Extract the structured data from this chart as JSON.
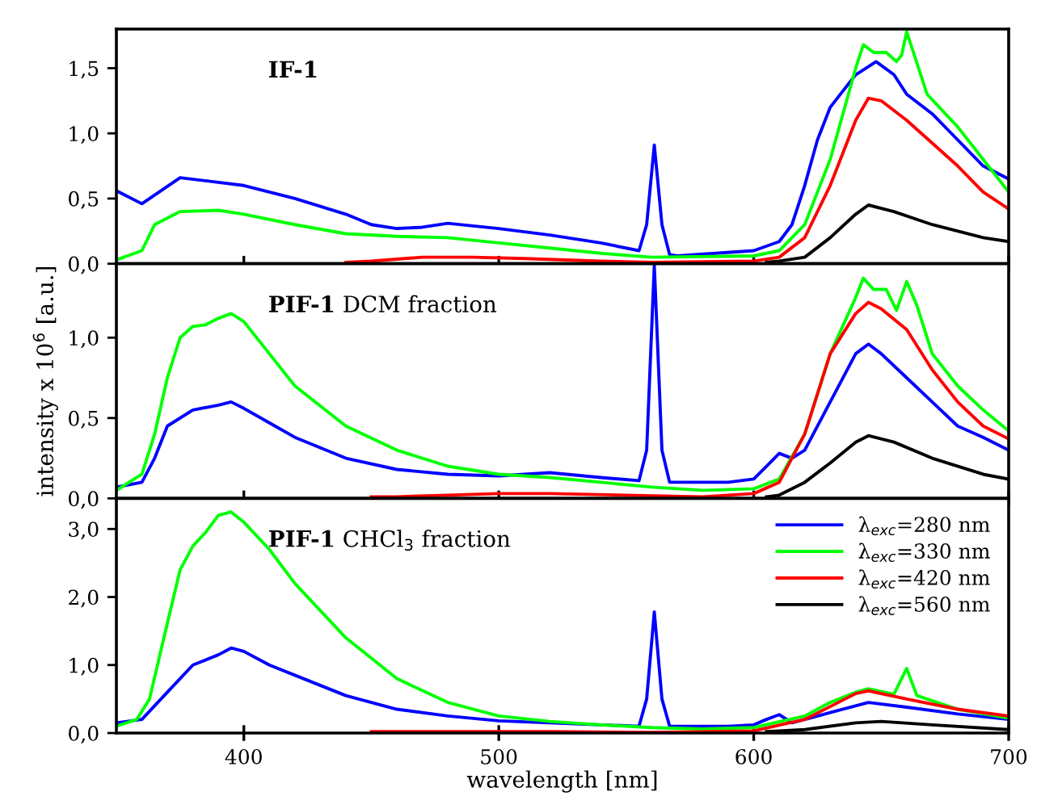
{
  "chart_data": [
    {
      "type": "line",
      "title": "IF-1",
      "xlim": [
        350,
        700
      ],
      "xticks": [
        400,
        500,
        600,
        700
      ],
      "ylim": [
        0,
        1.8
      ],
      "yticks": [
        {
          "value": 0,
          "label": "0,0"
        },
        {
          "value": 0.5,
          "label": "0,5"
        },
        {
          "value": 1.0,
          "label": "1,0"
        },
        {
          "value": 1.5,
          "label": "1,5"
        }
      ],
      "tick_labels": "y",
      "grid": false,
      "legend": false,
      "series": [
        {
          "color": "#0000ff",
          "x": [
            350,
            360,
            375,
            400,
            420,
            440,
            450,
            460,
            470,
            480,
            500,
            520,
            540,
            555,
            558,
            561,
            564,
            567,
            570,
            600,
            610,
            615,
            620,
            625,
            630,
            640,
            648,
            655,
            660,
            670,
            680,
            690,
            700
          ],
          "values": [
            0.56,
            0.46,
            0.66,
            0.6,
            0.5,
            0.38,
            0.3,
            0.27,
            0.28,
            0.31,
            0.27,
            0.22,
            0.16,
            0.1,
            0.3,
            0.91,
            0.3,
            0.07,
            0.06,
            0.1,
            0.17,
            0.3,
            0.6,
            0.95,
            1.2,
            1.45,
            1.55,
            1.45,
            1.3,
            1.15,
            0.95,
            0.75,
            0.65
          ]
        },
        {
          "color": "#00ff00",
          "x": [
            350,
            360,
            365,
            375,
            390,
            400,
            420,
            440,
            460,
            480,
            500,
            520,
            540,
            560,
            600,
            610,
            620,
            630,
            640,
            643,
            647,
            652,
            656,
            658,
            660,
            663,
            668,
            680,
            690,
            700
          ],
          "values": [
            0.03,
            0.1,
            0.3,
            0.4,
            0.41,
            0.38,
            0.3,
            0.23,
            0.21,
            0.2,
            0.16,
            0.12,
            0.08,
            0.05,
            0.06,
            0.1,
            0.3,
            0.8,
            1.5,
            1.68,
            1.62,
            1.62,
            1.55,
            1.6,
            1.78,
            1.6,
            1.3,
            1.05,
            0.8,
            0.55
          ]
        },
        {
          "color": "#ff0000",
          "x": [
            440,
            450,
            470,
            490,
            510,
            540,
            560,
            600,
            610,
            620,
            630,
            640,
            645,
            650,
            660,
            680,
            690,
            700
          ],
          "values": [
            0.01,
            0.02,
            0.05,
            0.05,
            0.04,
            0.02,
            0.01,
            0.02,
            0.05,
            0.2,
            0.6,
            1.1,
            1.27,
            1.25,
            1.1,
            0.75,
            0.55,
            0.42
          ]
        },
        {
          "color": "#000000",
          "x": [
            605,
            610,
            620,
            630,
            640,
            645,
            655,
            670,
            690,
            700
          ],
          "values": [
            0.01,
            0.02,
            0.05,
            0.2,
            0.38,
            0.45,
            0.4,
            0.3,
            0.2,
            0.17
          ]
        }
      ]
    },
    {
      "type": "line",
      "title": "PIF-1 DCM fraction",
      "ylabel": "intensity x 10$^{6}$ [a.u.]",
      "xlim": [
        350,
        700
      ],
      "xticks": [
        400,
        500,
        600,
        700
      ],
      "ylim": [
        0,
        1.46
      ],
      "yticks": [
        {
          "value": 0,
          "label": "0,0"
        },
        {
          "value": 0.5,
          "label": "0,5"
        },
        {
          "value": 1.0,
          "label": "1,0"
        }
      ],
      "tick_labels": "y",
      "grid": false,
      "legend": false,
      "series": [
        {
          "color": "#0000ff",
          "x": [
            350,
            360,
            365,
            370,
            380,
            390,
            395,
            400,
            410,
            420,
            440,
            460,
            480,
            500,
            520,
            540,
            555,
            558,
            561,
            564,
            567,
            590,
            600,
            605,
            610,
            615,
            620,
            630,
            640,
            645,
            650,
            660,
            670,
            680,
            690,
            700
          ],
          "values": [
            0.07,
            0.1,
            0.25,
            0.45,
            0.55,
            0.58,
            0.6,
            0.56,
            0.47,
            0.38,
            0.25,
            0.18,
            0.15,
            0.14,
            0.16,
            0.13,
            0.11,
            0.3,
            1.45,
            0.3,
            0.1,
            0.1,
            0.12,
            0.2,
            0.28,
            0.25,
            0.3,
            0.6,
            0.9,
            0.96,
            0.9,
            0.75,
            0.6,
            0.45,
            0.38,
            0.3
          ]
        },
        {
          "color": "#00ff00",
          "x": [
            350,
            360,
            365,
            370,
            375,
            380,
            385,
            390,
            395,
            400,
            410,
            420,
            440,
            460,
            480,
            500,
            520,
            540,
            560,
            580,
            600,
            610,
            620,
            630,
            640,
            643,
            647,
            652,
            656,
            660,
            664,
            670,
            680,
            690,
            700
          ],
          "values": [
            0.05,
            0.15,
            0.4,
            0.75,
            1.0,
            1.07,
            1.08,
            1.12,
            1.15,
            1.1,
            0.9,
            0.7,
            0.45,
            0.3,
            0.2,
            0.15,
            0.13,
            0.1,
            0.07,
            0.05,
            0.06,
            0.12,
            0.4,
            0.9,
            1.25,
            1.37,
            1.3,
            1.3,
            1.17,
            1.35,
            1.2,
            0.9,
            0.7,
            0.55,
            0.42
          ]
        },
        {
          "color": "#ff0000",
          "x": [
            450,
            460,
            480,
            500,
            520,
            550,
            580,
            600,
            610,
            620,
            630,
            640,
            645,
            650,
            660,
            670,
            680,
            690,
            700
          ],
          "values": [
            0.01,
            0.01,
            0.02,
            0.03,
            0.03,
            0.02,
            0.01,
            0.03,
            0.1,
            0.4,
            0.9,
            1.15,
            1.22,
            1.18,
            1.05,
            0.8,
            0.6,
            0.45,
            0.37
          ]
        },
        {
          "color": "#000000",
          "x": [
            605,
            610,
            620,
            630,
            640,
            645,
            655,
            670,
            690,
            700
          ],
          "values": [
            0.01,
            0.02,
            0.1,
            0.22,
            0.35,
            0.39,
            0.35,
            0.25,
            0.15,
            0.12
          ]
        }
      ]
    },
    {
      "type": "line",
      "title": "PIF-1 CHCl$_{3}$ fraction",
      "xlabel": "wavelength [nm]",
      "xlim": [
        350,
        700
      ],
      "xticks": [
        400,
        500,
        600,
        700
      ],
      "ylim": [
        0,
        3.45
      ],
      "yticks": [
        {
          "value": 0,
          "label": "0,0"
        },
        {
          "value": 1.0,
          "label": "1,0"
        },
        {
          "value": 2.0,
          "label": "2,0"
        },
        {
          "value": 3.0,
          "label": "3,0"
        }
      ],
      "grid": false,
      "legend": "top right",
      "series": [
        {
          "name": "λ$_{exc}$=280 nm",
          "color": "#0000ff",
          "x": [
            350,
            360,
            370,
            380,
            390,
            395,
            400,
            410,
            420,
            440,
            460,
            480,
            500,
            520,
            540,
            555,
            558,
            561,
            564,
            567,
            590,
            600,
            605,
            610,
            615,
            630,
            645,
            660,
            680,
            700
          ],
          "values": [
            0.15,
            0.2,
            0.6,
            1.0,
            1.15,
            1.25,
            1.2,
            1.0,
            0.85,
            0.55,
            0.35,
            0.25,
            0.18,
            0.15,
            0.12,
            0.1,
            0.5,
            1.78,
            0.5,
            0.1,
            0.1,
            0.12,
            0.2,
            0.27,
            0.15,
            0.3,
            0.45,
            0.38,
            0.28,
            0.2
          ]
        },
        {
          "name": "λ$_{exc}$=330 nm",
          "color": "#00ff00",
          "x": [
            350,
            358,
            363,
            368,
            375,
            380,
            385,
            390,
            395,
            400,
            410,
            420,
            440,
            460,
            480,
            500,
            520,
            540,
            560,
            580,
            600,
            620,
            630,
            640,
            645,
            655,
            660,
            664,
            680,
            700
          ],
          "values": [
            0.1,
            0.2,
            0.5,
            1.3,
            2.4,
            2.75,
            2.95,
            3.2,
            3.25,
            3.1,
            2.7,
            2.2,
            1.4,
            0.8,
            0.45,
            0.25,
            0.17,
            0.12,
            0.08,
            0.06,
            0.08,
            0.25,
            0.45,
            0.6,
            0.65,
            0.57,
            0.95,
            0.55,
            0.35,
            0.22
          ]
        },
        {
          "name": "λ$_{exc}$=420 nm",
          "color": "#ff0000",
          "x": [
            450,
            480,
            520,
            560,
            600,
            620,
            640,
            645,
            660,
            680,
            700
          ],
          "values": [
            0.02,
            0.02,
            0.02,
            0.01,
            0.03,
            0.2,
            0.58,
            0.62,
            0.5,
            0.35,
            0.25
          ]
        },
        {
          "name": "λ$_{exc}$=560 nm",
          "color": "#000000",
          "x": [
            605,
            610,
            620,
            640,
            650,
            670,
            700
          ],
          "values": [
            0.02,
            0.03,
            0.05,
            0.15,
            0.17,
            0.12,
            0.05
          ]
        }
      ]
    }
  ]
}
